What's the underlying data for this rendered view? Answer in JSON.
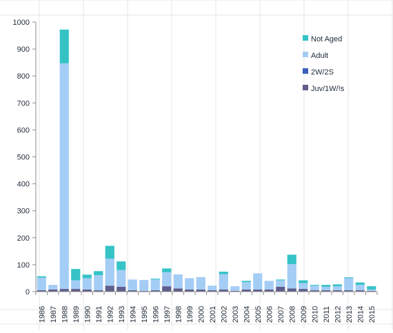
{
  "chart_data": {
    "type": "bar",
    "stacked": true,
    "title": "",
    "xlabel": "",
    "ylabel": "",
    "ylim": [
      0,
      1000
    ],
    "yticks": [
      0,
      100,
      200,
      300,
      400,
      500,
      600,
      700,
      800,
      900,
      1000
    ],
    "grid": false,
    "legend_position": "top-right",
    "categories": [
      "1986",
      "1987",
      "1988",
      "1989",
      "1990",
      "1991",
      "1992",
      "1993",
      "1994",
      "1995",
      "1996",
      "1997",
      "1998",
      "1999",
      "2000",
      "2001",
      "2002",
      "2003",
      "2004",
      "2005",
      "2006",
      "2007",
      "2008",
      "2009",
      "2010",
      "2011",
      "2012",
      "2013",
      "2014",
      "2015"
    ],
    "series": [
      {
        "name": "Juv/1W/!s",
        "color": "#5f5e8c",
        "values": [
          5,
          8,
          10,
          10,
          8,
          5,
          22,
          18,
          5,
          3,
          5,
          20,
          12,
          8,
          8,
          5,
          8,
          3,
          8,
          8,
          8,
          18,
          12,
          10,
          5,
          5,
          5,
          5,
          5,
          3
        ]
      },
      {
        "name": "2W/2S",
        "color": "#3a5fb8",
        "values": [
          0,
          0,
          0,
          0,
          0,
          0,
          0,
          0,
          0,
          0,
          0,
          0,
          0,
          0,
          0,
          0,
          0,
          0,
          0,
          0,
          0,
          0,
          0,
          0,
          0,
          0,
          0,
          0,
          0,
          0
        ]
      },
      {
        "name": "Adult",
        "color": "#a4cdf5",
        "values": [
          47,
          17,
          837,
          32,
          42,
          56,
          100,
          62,
          40,
          40,
          40,
          52,
          52,
          42,
          46,
          17,
          57,
          17,
          27,
          60,
          32,
          24,
          90,
          22,
          17,
          13,
          15,
          45,
          20,
          5
        ]
      },
      {
        "name": "Not Aged",
        "color": "#35c3c6",
        "values": [
          5,
          0,
          125,
          42,
          13,
          15,
          48,
          32,
          0,
          0,
          3,
          14,
          0,
          0,
          0,
          0,
          9,
          0,
          5,
          0,
          0,
          3,
          35,
          10,
          3,
          7,
          7,
          3,
          9,
          12
        ]
      }
    ],
    "legend_order": [
      "Not Aged",
      "Adult",
      "2W/2S",
      "Juv/1W/!s"
    ]
  }
}
